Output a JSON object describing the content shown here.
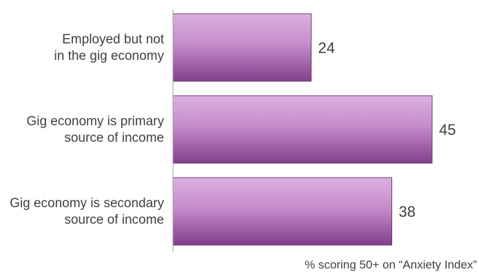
{
  "chart_data": {
    "type": "bar",
    "orientation": "horizontal",
    "categories": [
      [
        "Employed but not",
        "in the gig economy"
      ],
      [
        "Gig economy is primary",
        "source of income"
      ],
      [
        "Gig economy is secondary",
        "source of income"
      ]
    ],
    "values": [
      24,
      45,
      38
    ],
    "xlabel": "% scoring 50+ on “Anxiety Index”",
    "xlim": [
      0,
      50
    ],
    "grid": false,
    "legend": "none",
    "colors": {
      "bar_top": "#dcb0e0",
      "bar_bottom": "#833f8b",
      "bar_border": "#6d3a72",
      "axis": "#9a9a9a",
      "text": "#3f3f3f"
    }
  }
}
